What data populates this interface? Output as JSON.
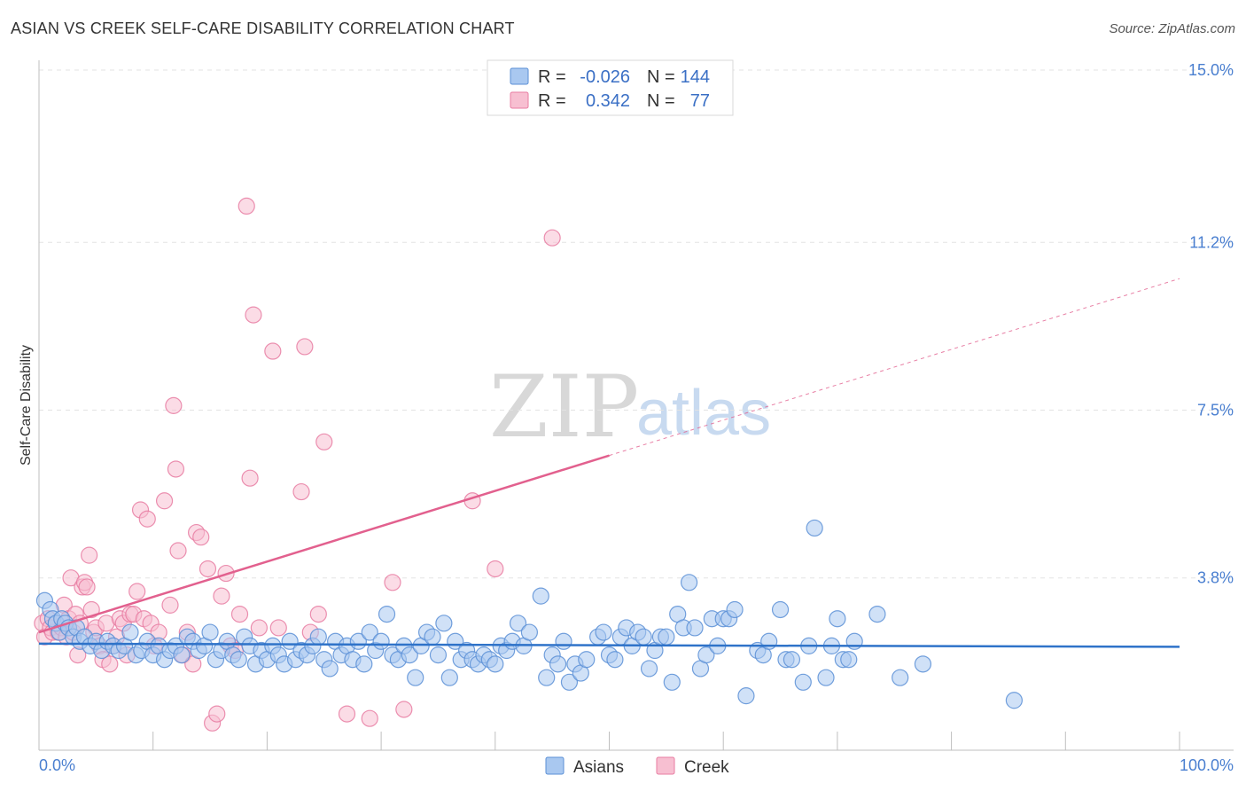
{
  "title": "ASIAN VS CREEK SELF-CARE DISABILITY CORRELATION CHART",
  "source": "Source: ZipAtlas.com",
  "watermark": {
    "zip": "ZIP",
    "atlas": "atlas"
  },
  "colors": {
    "asian_fill": "#a9c8f0",
    "asian_stroke": "#5b8fd6",
    "asian_line": "#2f73c9",
    "creek_fill": "#f7bfd1",
    "creek_stroke": "#e87da2",
    "creek_line": "#e2608e",
    "tick_text": "#4a7fd0",
    "grid": "#e3e3e3"
  },
  "chart_data": {
    "type": "scatter",
    "title": "ASIAN VS CREEK SELF-CARE DISABILITY CORRELATION CHART",
    "xlabel": "",
    "ylabel": "Self-Care Disability",
    "xlim": [
      0,
      100
    ],
    "ylim": [
      0,
      15.0
    ],
    "x_tick_labels": [
      "0.0%",
      "100.0%"
    ],
    "y_ticks": [
      3.8,
      7.5,
      11.2,
      15.0
    ],
    "y_tick_labels": [
      "3.8%",
      "7.5%",
      "11.2%",
      "15.0%"
    ],
    "grid": true,
    "legend": {
      "position": "top-center",
      "entries": [
        {
          "r_label": "R =",
          "r_value": "-0.026",
          "n_label": "N =",
          "n_value": "144"
        },
        {
          "r_label": "R =",
          "r_value": "0.342",
          "n_label": "N =",
          "n_value": "77"
        }
      ]
    },
    "bottom_legend": [
      "Asians",
      "Creek"
    ],
    "series": [
      {
        "name": "Asians",
        "r": -0.026,
        "n": 144,
        "trend": {
          "x0": 0,
          "y0": 2.35,
          "x1": 100,
          "y1": 2.28
        },
        "points": [
          [
            0.5,
            3.3
          ],
          [
            1.0,
            3.1
          ],
          [
            1.2,
            2.9
          ],
          [
            1.5,
            2.8
          ],
          [
            1.8,
            2.6
          ],
          [
            2.0,
            2.9
          ],
          [
            2.3,
            2.8
          ],
          [
            2.6,
            2.7
          ],
          [
            3.0,
            2.5
          ],
          [
            3.3,
            2.7
          ],
          [
            3.6,
            2.4
          ],
          [
            4.0,
            2.5
          ],
          [
            4.5,
            2.3
          ],
          [
            5.0,
            2.4
          ],
          [
            5.5,
            2.2
          ],
          [
            6.0,
            2.4
          ],
          [
            6.5,
            2.3
          ],
          [
            7.0,
            2.2
          ],
          [
            7.5,
            2.3
          ],
          [
            8.0,
            2.6
          ],
          [
            8.5,
            2.1
          ],
          [
            9.0,
            2.2
          ],
          [
            9.5,
            2.4
          ],
          [
            10.0,
            2.1
          ],
          [
            10.5,
            2.3
          ],
          [
            11.0,
            2.0
          ],
          [
            11.5,
            2.2
          ],
          [
            12.0,
            2.3
          ],
          [
            12.5,
            2.1
          ],
          [
            13.0,
            2.5
          ],
          [
            13.5,
            2.4
          ],
          [
            14.0,
            2.2
          ],
          [
            14.5,
            2.3
          ],
          [
            15.0,
            2.6
          ],
          [
            15.5,
            2.0
          ],
          [
            16.0,
            2.2
          ],
          [
            16.5,
            2.4
          ],
          [
            17.0,
            2.1
          ],
          [
            17.5,
            2.0
          ],
          [
            18.0,
            2.5
          ],
          [
            18.5,
            2.3
          ],
          [
            19.0,
            1.9
          ],
          [
            19.5,
            2.2
          ],
          [
            20.0,
            2.0
          ],
          [
            20.5,
            2.3
          ],
          [
            21.0,
            2.1
          ],
          [
            21.5,
            1.9
          ],
          [
            22.0,
            2.4
          ],
          [
            22.5,
            2.0
          ],
          [
            23.0,
            2.2
          ],
          [
            23.5,
            2.1
          ],
          [
            24.0,
            2.3
          ],
          [
            24.5,
            2.5
          ],
          [
            25.0,
            2.0
          ],
          [
            25.5,
            1.8
          ],
          [
            26.0,
            2.4
          ],
          [
            26.5,
            2.1
          ],
          [
            27.0,
            2.3
          ],
          [
            27.5,
            2.0
          ],
          [
            28.0,
            2.4
          ],
          [
            28.5,
            1.9
          ],
          [
            29.0,
            2.6
          ],
          [
            29.5,
            2.2
          ],
          [
            30.0,
            2.4
          ],
          [
            30.5,
            3.0
          ],
          [
            31.0,
            2.1
          ],
          [
            31.5,
            2.0
          ],
          [
            32.0,
            2.3
          ],
          [
            32.5,
            2.1
          ],
          [
            33.0,
            1.6
          ],
          [
            33.5,
            2.3
          ],
          [
            34.0,
            2.6
          ],
          [
            34.5,
            2.5
          ],
          [
            35.0,
            2.1
          ],
          [
            35.5,
            2.8
          ],
          [
            36.0,
            1.6
          ],
          [
            36.5,
            2.4
          ],
          [
            37.0,
            2.0
          ],
          [
            37.5,
            2.2
          ],
          [
            38.0,
            2.0
          ],
          [
            38.5,
            1.9
          ],
          [
            39.0,
            2.1
          ],
          [
            39.5,
            2.0
          ],
          [
            40.0,
            1.9
          ],
          [
            40.5,
            2.3
          ],
          [
            41.0,
            2.2
          ],
          [
            41.5,
            2.4
          ],
          [
            42.0,
            2.8
          ],
          [
            42.5,
            2.3
          ],
          [
            43.0,
            2.6
          ],
          [
            44.0,
            3.4
          ],
          [
            44.5,
            1.6
          ],
          [
            45.0,
            2.1
          ],
          [
            45.5,
            1.9
          ],
          [
            46.0,
            2.4
          ],
          [
            46.5,
            1.5
          ],
          [
            47.0,
            1.9
          ],
          [
            47.5,
            1.7
          ],
          [
            48.0,
            2.0
          ],
          [
            49.0,
            2.5
          ],
          [
            49.5,
            2.6
          ],
          [
            50.0,
            2.1
          ],
          [
            50.5,
            2.0
          ],
          [
            51.0,
            2.5
          ],
          [
            51.5,
            2.7
          ],
          [
            52.0,
            2.3
          ],
          [
            52.5,
            2.6
          ],
          [
            53.0,
            2.5
          ],
          [
            53.5,
            1.8
          ],
          [
            54.0,
            2.2
          ],
          [
            54.5,
            2.5
          ],
          [
            55.0,
            2.5
          ],
          [
            55.5,
            1.5
          ],
          [
            56.0,
            3.0
          ],
          [
            56.5,
            2.7
          ],
          [
            57.0,
            3.7
          ],
          [
            57.5,
            2.7
          ],
          [
            58.0,
            1.8
          ],
          [
            58.5,
            2.1
          ],
          [
            59.0,
            2.9
          ],
          [
            59.5,
            2.3
          ],
          [
            60.0,
            2.9
          ],
          [
            60.5,
            2.9
          ],
          [
            61.0,
            3.1
          ],
          [
            62.0,
            1.2
          ],
          [
            63.0,
            2.2
          ],
          [
            63.5,
            2.1
          ],
          [
            64.0,
            2.4
          ],
          [
            65.0,
            3.1
          ],
          [
            65.5,
            2.0
          ],
          [
            66.0,
            2.0
          ],
          [
            67.0,
            1.5
          ],
          [
            67.5,
            2.3
          ],
          [
            68.0,
            4.9
          ],
          [
            69.0,
            1.6
          ],
          [
            69.5,
            2.3
          ],
          [
            70.0,
            2.9
          ],
          [
            70.5,
            2.0
          ],
          [
            71.0,
            2.0
          ],
          [
            71.5,
            2.4
          ],
          [
            73.5,
            3.0
          ],
          [
            75.5,
            1.6
          ],
          [
            77.5,
            1.9
          ],
          [
            85.5,
            1.1
          ]
        ]
      },
      {
        "name": "Creek",
        "r": 0.342,
        "n": 77,
        "trend": {
          "x0": 0,
          "y0": 2.6,
          "x1": 50,
          "y1": 6.5,
          "dash_to": {
            "x": 100,
            "y": 10.4
          }
        },
        "points": [
          [
            0.3,
            2.8
          ],
          [
            0.5,
            2.5
          ],
          [
            0.8,
            2.9
          ],
          [
            1.0,
            2.7
          ],
          [
            1.2,
            2.6
          ],
          [
            1.5,
            2.8
          ],
          [
            1.7,
            2.6
          ],
          [
            2.0,
            2.7
          ],
          [
            2.2,
            3.2
          ],
          [
            2.4,
            2.5
          ],
          [
            2.6,
            2.9
          ],
          [
            2.8,
            3.8
          ],
          [
            3.0,
            2.6
          ],
          [
            3.2,
            3.0
          ],
          [
            3.4,
            2.1
          ],
          [
            3.6,
            2.8
          ],
          [
            3.8,
            3.6
          ],
          [
            4.0,
            3.7
          ],
          [
            4.2,
            3.6
          ],
          [
            4.4,
            4.3
          ],
          [
            4.6,
            3.1
          ],
          [
            4.8,
            2.6
          ],
          [
            5.0,
            2.7
          ],
          [
            5.3,
            2.3
          ],
          [
            5.6,
            2.0
          ],
          [
            5.9,
            2.8
          ],
          [
            6.2,
            1.9
          ],
          [
            6.5,
            2.3
          ],
          [
            6.8,
            2.5
          ],
          [
            7.1,
            2.9
          ],
          [
            7.4,
            2.8
          ],
          [
            7.7,
            2.1
          ],
          [
            8.0,
            3.0
          ],
          [
            8.3,
            3.0
          ],
          [
            8.6,
            3.5
          ],
          [
            8.9,
            5.3
          ],
          [
            9.2,
            2.9
          ],
          [
            9.5,
            5.1
          ],
          [
            9.8,
            2.8
          ],
          [
            10.1,
            2.3
          ],
          [
            10.5,
            2.6
          ],
          [
            11.0,
            5.5
          ],
          [
            11.5,
            3.2
          ],
          [
            11.8,
            7.6
          ],
          [
            12.0,
            6.2
          ],
          [
            12.2,
            4.4
          ],
          [
            12.6,
            2.1
          ],
          [
            13.0,
            2.6
          ],
          [
            13.5,
            1.9
          ],
          [
            13.8,
            4.8
          ],
          [
            14.2,
            4.7
          ],
          [
            14.8,
            4.0
          ],
          [
            15.2,
            0.6
          ],
          [
            15.6,
            0.8
          ],
          [
            16.0,
            3.4
          ],
          [
            16.4,
            3.9
          ],
          [
            16.8,
            2.3
          ],
          [
            17.2,
            2.2
          ],
          [
            17.6,
            3.0
          ],
          [
            18.5,
            6.0
          ],
          [
            18.2,
            12.0
          ],
          [
            18.8,
            9.6
          ],
          [
            19.3,
            2.7
          ],
          [
            20.5,
            8.8
          ],
          [
            21.0,
            2.7
          ],
          [
            23.0,
            5.7
          ],
          [
            23.3,
            8.9
          ],
          [
            23.8,
            2.6
          ],
          [
            24.5,
            3.0
          ],
          [
            25.0,
            6.8
          ],
          [
            27.0,
            0.8
          ],
          [
            29.0,
            0.7
          ],
          [
            31.0,
            3.7
          ],
          [
            32.0,
            0.9
          ],
          [
            38.0,
            5.5
          ],
          [
            40.0,
            4.0
          ],
          [
            45.0,
            11.3
          ]
        ]
      }
    ]
  }
}
